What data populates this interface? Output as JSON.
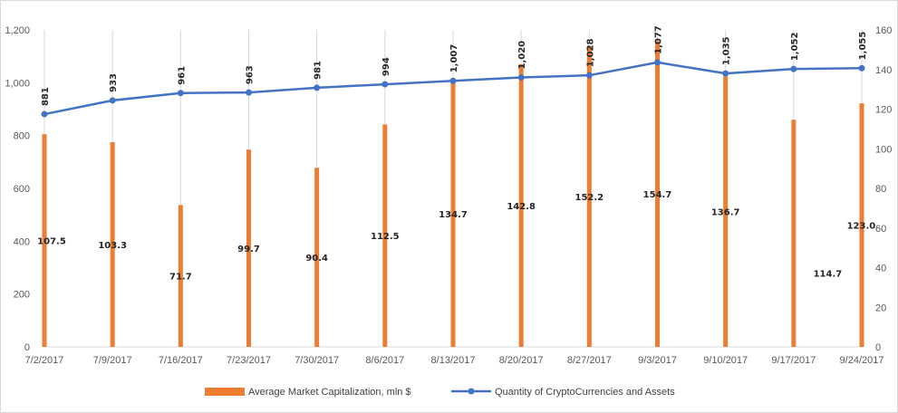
{
  "chart_data": {
    "type": "bar+line",
    "categories": [
      "7/2/2017",
      "7/9/2017",
      "7/16/2017",
      "7/23/2017",
      "7/30/2017",
      "8/6/2017",
      "8/13/2017",
      "8/20/2017",
      "8/27/2017",
      "9/3/2017",
      "9/10/2017",
      "9/17/2017",
      "9/24/2017"
    ],
    "series": [
      {
        "name": "Average Market Capitalization, mln $",
        "type": "bar",
        "axis": "left",
        "color": "#ed7d31",
        "values": [
          805,
          775,
          537,
          747,
          678,
          842,
          1009,
          1070,
          1140,
          1158,
          1024,
          860,
          922
        ],
        "labels": [
          "107.5",
          "103.3",
          "71.7",
          "99.7",
          "90.4",
          "112.5",
          "134.7",
          "142.8",
          "152.2",
          "154.7",
          "136.7",
          "114.7",
          "123.0"
        ]
      },
      {
        "name": "Quantity of CryptoCurrencies and Assets",
        "type": "line",
        "axis": "right",
        "color": "#4472c4",
        "values": [
          881,
          933,
          961,
          963,
          981,
          994,
          1007,
          1020,
          1028,
          1077,
          1035,
          1052,
          1055
        ],
        "labels": [
          "881",
          "933",
          "961",
          "963",
          "981",
          "994",
          "1,007",
          "1,020",
          "1,028",
          "1,077",
          "1,035",
          "1,052",
          "1,055"
        ]
      }
    ],
    "left_axis": {
      "min": 0,
      "max": 1200,
      "step": 200,
      "tick_labels": [
        "0",
        "200",
        "400",
        "600",
        "800",
        "1,000",
        "1,200"
      ]
    },
    "right_axis": {
      "min": 0,
      "max": 160,
      "step": 20,
      "tick_labels": [
        "0",
        "20",
        "40",
        "60",
        "80",
        "100",
        "120",
        "140",
        "160"
      ]
    },
    "grid": "vertical",
    "legend": "bottom"
  }
}
